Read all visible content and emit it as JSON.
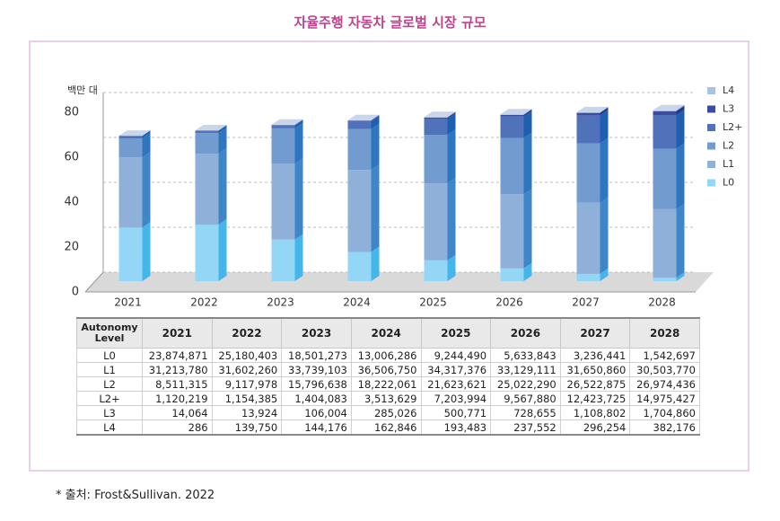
{
  "chart_data": {
    "type": "bar",
    "stacked": true,
    "title": "자율주행 자동차 글로벌 시장 규모",
    "y_label": "백만 대",
    "table_header": "Autonomy Level",
    "source": "* 출처: Frost&Sullivan. 2022",
    "categories": [
      "2021",
      "2022",
      "2023",
      "2024",
      "2025",
      "2026",
      "2027",
      "2028"
    ],
    "ylim": [
      0,
      80000000
    ],
    "yticks": [
      {
        "value": 0,
        "label": "0"
      },
      {
        "value": 20000000,
        "label": "20"
      },
      {
        "value": 40000000,
        "label": "40"
      },
      {
        "value": 60000000,
        "label": "60"
      },
      {
        "value": 80000000,
        "label": "80"
      }
    ],
    "grid": true,
    "legend": "right",
    "series": [
      {
        "name": "L0",
        "color": "#93d6f5",
        "side": "#45b6ea",
        "values": [
          23874871,
          25180403,
          18501273,
          13006286,
          9244490,
          5633843,
          3236441,
          1542697
        ],
        "value_labels": [
          "23,874,871",
          "25,180,403",
          "18,501,273",
          "13,006,286",
          "9,244,490",
          "5,633,843",
          "3,236,441",
          "1,542,697"
        ]
      },
      {
        "name": "L1",
        "color": "#8fb1d9",
        "side": "#3f86c9",
        "values": [
          31213780,
          31602260,
          33739103,
          36506750,
          34317376,
          33129111,
          31650860,
          30503770
        ],
        "value_labels": [
          "31,213,780",
          "31,602,260",
          "33,739,103",
          "36,506,750",
          "34,317,376",
          "33,129,111",
          "31,650,860",
          "30,503,770"
        ]
      },
      {
        "name": "L2",
        "color": "#729bd0",
        "side": "#2f76c0",
        "values": [
          8511315,
          9117978,
          15796638,
          18222061,
          21623621,
          25022290,
          26522875,
          26974436
        ],
        "value_labels": [
          "8,511,315",
          "9,117,978",
          "15,796,638",
          "18,222,061",
          "21,623,621",
          "25,022,290",
          "26,522,875",
          "26,974,436"
        ]
      },
      {
        "name": "L2+",
        "color": "#4f72bb",
        "side": "#1f5fb0",
        "values": [
          1120219,
          1154385,
          1404083,
          3513629,
          7203994,
          9567880,
          12423725,
          14975427
        ],
        "value_labels": [
          "1,120,219",
          "1,154,385",
          "1,404,083",
          "3,513,629",
          "7,203,994",
          "9,567,880",
          "12,423,725",
          "14,975,427"
        ]
      },
      {
        "name": "L3",
        "color": "#3d4d9d",
        "side": "#24358a",
        "values": [
          14064,
          13924,
          106004,
          285026,
          500771,
          728655,
          1108802,
          1704860
        ],
        "value_labels": [
          "14,064",
          "13,924",
          "106,004",
          "285,026",
          "500,771",
          "728,655",
          "1,108,802",
          "1,704,860"
        ]
      },
      {
        "name": "L4",
        "color": "#a9c2e3",
        "side": "#6f97cc",
        "values": [
          286,
          139750,
          144176,
          162846,
          193483,
          237552,
          296254,
          382176
        ],
        "value_labels": [
          "286",
          "139,750",
          "144,176",
          "162,846",
          "193,483",
          "237,552",
          "296,254",
          "382,176"
        ]
      }
    ]
  }
}
